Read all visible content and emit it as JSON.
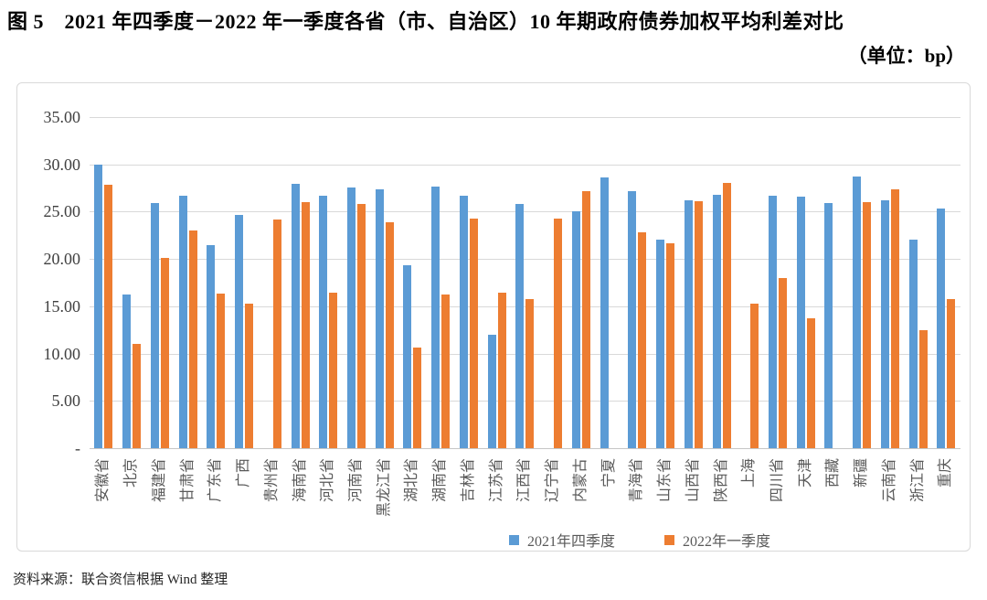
{
  "figure": {
    "title": "图 5　2021 年四季度－2022 年一季度各省（市、自治区）10 年期政府债券加权平均利差对比",
    "unit_note": "（单位：bp）",
    "source_note": "资料来源：联合资信根据 Wind 整理"
  },
  "colors": {
    "series_blue": "#5B9BD5",
    "series_orange": "#ED7D31",
    "gridline": "#D9D9D9",
    "axis_line": "#C6C6C6",
    "tick_text": "#595959"
  },
  "chart_data": {
    "type": "bar",
    "title": "2021年四季度－2022年一季度各省（市、自治区）10年期政府债券加权平均利差对比",
    "unit": "bp",
    "ylim": [
      0,
      35
    ],
    "grid": true,
    "legend_position": "bottom",
    "y_ticks": [
      {
        "label": "35.00",
        "value": 35
      },
      {
        "label": "30.00",
        "value": 30
      },
      {
        "label": "25.00",
        "value": 25
      },
      {
        "label": "20.00",
        "value": 20
      },
      {
        "label": "15.00",
        "value": 15
      },
      {
        "label": "10.00",
        "value": 10
      },
      {
        "label": "5.00",
        "value": 5
      },
      {
        "label": "-",
        "value": 0
      }
    ],
    "categories": [
      "安徽省",
      "北京",
      "福建省",
      "甘肃省",
      "广东省",
      "广西",
      "贵州省",
      "海南省",
      "河北省",
      "河南省",
      "黑龙江省",
      "湖北省",
      "湖南省",
      "吉林省",
      "江苏省",
      "江西省",
      "辽宁省",
      "内蒙古",
      "宁夏",
      "青海省",
      "山东省",
      "山西省",
      "陕西省",
      "上海",
      "四川省",
      "天津",
      "西藏",
      "新疆",
      "云南省",
      "浙江省",
      "重庆"
    ],
    "series": [
      {
        "name": "2021年四季度",
        "color": "#5B9BD5",
        "values": [
          30.0,
          16.2,
          25.9,
          26.7,
          21.5,
          24.7,
          null,
          27.9,
          26.7,
          27.6,
          27.4,
          19.3,
          27.7,
          26.7,
          12.0,
          25.8,
          null,
          25.0,
          28.6,
          27.2,
          22.0,
          26.2,
          26.8,
          null,
          26.7,
          26.6,
          25.9,
          28.7,
          26.2,
          22.0,
          25.3
        ]
      },
      {
        "name": "2022年一季度",
        "color": "#ED7D31",
        "values": [
          27.8,
          11.0,
          20.1,
          23.0,
          16.3,
          15.3,
          24.2,
          26.0,
          16.4,
          25.8,
          23.9,
          10.6,
          16.2,
          24.3,
          16.4,
          15.8,
          24.3,
          27.2,
          null,
          22.8,
          21.7,
          26.1,
          28.0,
          15.3,
          18.0,
          13.7,
          null,
          26.0,
          27.4,
          12.5,
          15.8
        ]
      }
    ]
  }
}
